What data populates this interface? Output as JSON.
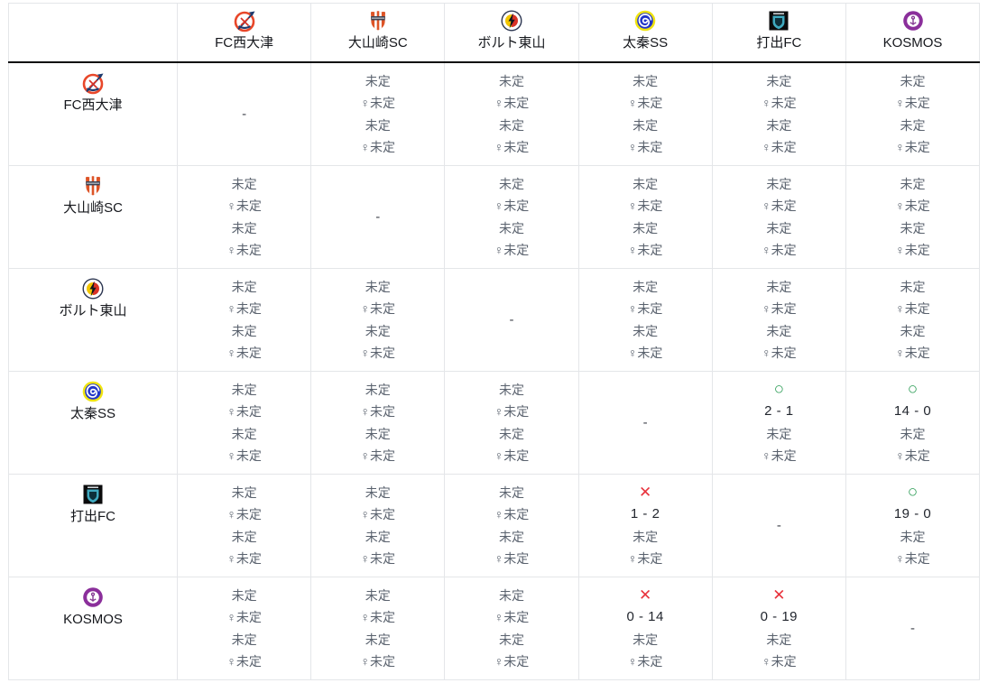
{
  "table": {
    "corner_label": "",
    "self_dash": "-",
    "pending_label": "未定",
    "female_pending_label": "♀未定",
    "colors": {
      "grid_border": "#e4e6e9",
      "header_rule": "#0b0c0d",
      "pending_text": "#5a626e",
      "score_text": "#22262e",
      "win_green": "#2f9e58",
      "loss_red": "#e8323c"
    },
    "marks": {
      "win": {
        "symbol": "○",
        "icon": "win-circle-icon",
        "color": "#2f9e58"
      },
      "loss": {
        "symbol": "✕",
        "icon": "loss-cross-icon",
        "color": "#e8323c"
      }
    },
    "teams": [
      {
        "id": "fc-nishiotsu",
        "name": "FC西大津",
        "logo_icon": "fc-nishiotsu-crest-icon",
        "logo_colors": {
          "primary": "#e8472a",
          "secondary": "#1d3a6e",
          "accent": "#d93226"
        }
      },
      {
        "id": "oyamazaki-sc",
        "name": "大山崎SC",
        "logo_icon": "oyamazaki-sc-crest-icon",
        "logo_colors": {
          "primary": "#dd5427",
          "secondary": "#3a4152",
          "accent": "#ffffff"
        }
      },
      {
        "id": "bolt-higashiyama",
        "name": "ボルト東山",
        "logo_icon": "bolt-higashiyama-crest-icon",
        "logo_colors": {
          "primary": "#f2c500",
          "secondary": "#d93226",
          "accent": "#12161e"
        }
      },
      {
        "id": "uzumasa-ss",
        "name": "太秦SS",
        "logo_icon": "uzumasa-ss-crest-icon",
        "logo_colors": {
          "primary": "#f0e410",
          "secondary": "#2236c8",
          "accent": "#ffffff"
        }
      },
      {
        "id": "uchide-fc",
        "name": "打出FC",
        "logo_icon": "uchide-fc-crest-icon",
        "logo_colors": {
          "primary": "#0b0b0c",
          "secondary": "#3fa9bf",
          "accent": "#0d2f3a"
        }
      },
      {
        "id": "kosmos",
        "name": "KOSMOS",
        "logo_icon": "kosmos-crest-icon",
        "logo_colors": {
          "primary": "#8b2f9b",
          "secondary": "#ffffff",
          "accent": "#7b2a8a"
        }
      }
    ],
    "rows": [
      {
        "team": "FC西大津",
        "cells": [
          {
            "self": true
          },
          {
            "lines": [
              "未定",
              "♀未定",
              "未定",
              "♀未定"
            ]
          },
          {
            "lines": [
              "未定",
              "♀未定",
              "未定",
              "♀未定"
            ]
          },
          {
            "lines": [
              "未定",
              "♀未定",
              "未定",
              "♀未定"
            ]
          },
          {
            "lines": [
              "未定",
              "♀未定",
              "未定",
              "♀未定"
            ]
          },
          {
            "lines": [
              "未定",
              "♀未定",
              "未定",
              "♀未定"
            ]
          }
        ]
      },
      {
        "team": "大山崎SC",
        "cells": [
          {
            "lines": [
              "未定",
              "♀未定",
              "未定",
              "♀未定"
            ]
          },
          {
            "self": true
          },
          {
            "lines": [
              "未定",
              "♀未定",
              "未定",
              "♀未定"
            ]
          },
          {
            "lines": [
              "未定",
              "♀未定",
              "未定",
              "♀未定"
            ]
          },
          {
            "lines": [
              "未定",
              "♀未定",
              "未定",
              "♀未定"
            ]
          },
          {
            "lines": [
              "未定",
              "♀未定",
              "未定",
              "♀未定"
            ]
          }
        ]
      },
      {
        "team": "ボルト東山",
        "cells": [
          {
            "lines": [
              "未定",
              "♀未定",
              "未定",
              "♀未定"
            ]
          },
          {
            "lines": [
              "未定",
              "♀未定",
              "未定",
              "♀未定"
            ]
          },
          {
            "self": true
          },
          {
            "lines": [
              "未定",
              "♀未定",
              "未定",
              "♀未定"
            ]
          },
          {
            "lines": [
              "未定",
              "♀未定",
              "未定",
              "♀未定"
            ]
          },
          {
            "lines": [
              "未定",
              "♀未定",
              "未定",
              "♀未定"
            ]
          }
        ]
      },
      {
        "team": "太秦SS",
        "cells": [
          {
            "lines": [
              "未定",
              "♀未定",
              "未定",
              "♀未定"
            ]
          },
          {
            "lines": [
              "未定",
              "♀未定",
              "未定",
              "♀未定"
            ]
          },
          {
            "lines": [
              "未定",
              "♀未定",
              "未定",
              "♀未定"
            ]
          },
          {
            "self": true
          },
          {
            "mark": "win",
            "score": "2 - 1",
            "lines": [
              "未定",
              "♀未定"
            ]
          },
          {
            "mark": "win",
            "score": "14 - 0",
            "lines": [
              "未定",
              "♀未定"
            ]
          }
        ]
      },
      {
        "team": "打出FC",
        "cells": [
          {
            "lines": [
              "未定",
              "♀未定",
              "未定",
              "♀未定"
            ]
          },
          {
            "lines": [
              "未定",
              "♀未定",
              "未定",
              "♀未定"
            ]
          },
          {
            "lines": [
              "未定",
              "♀未定",
              "未定",
              "♀未定"
            ]
          },
          {
            "mark": "loss",
            "score": "1 - 2",
            "lines": [
              "未定",
              "♀未定"
            ]
          },
          {
            "self": true
          },
          {
            "mark": "win",
            "score": "19 - 0",
            "lines": [
              "未定",
              "♀未定"
            ]
          }
        ]
      },
      {
        "team": "KOSMOS",
        "cells": [
          {
            "lines": [
              "未定",
              "♀未定",
              "未定",
              "♀未定"
            ]
          },
          {
            "lines": [
              "未定",
              "♀未定",
              "未定",
              "♀未定"
            ]
          },
          {
            "lines": [
              "未定",
              "♀未定",
              "未定",
              "♀未定"
            ]
          },
          {
            "mark": "loss",
            "score": "0 - 14",
            "lines": [
              "未定",
              "♀未定"
            ]
          },
          {
            "mark": "loss",
            "score": "0 - 19",
            "lines": [
              "未定",
              "♀未定"
            ]
          },
          {
            "self": true
          }
        ]
      }
    ]
  }
}
